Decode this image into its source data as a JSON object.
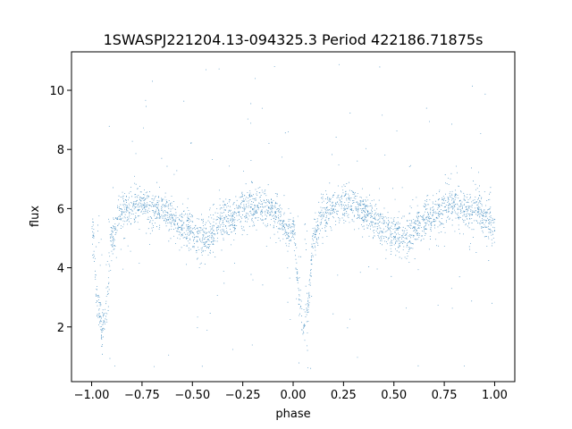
{
  "chart_data": {
    "type": "scatter",
    "title": "1SWASPJ221204.13-094325.3 Period 422186.71875s",
    "xlabel": "phase",
    "ylabel": "flux",
    "xlim": [
      -1.1,
      1.1
    ],
    "ylim": [
      0.15,
      11.3
    ],
    "xticks": [
      -1.0,
      -0.75,
      -0.5,
      -0.25,
      0.0,
      0.25,
      0.5,
      0.75,
      1.0
    ],
    "xtick_labels": [
      "−1.00",
      "−0.75",
      "−0.50",
      "−0.25",
      "0.00",
      "0.25",
      "0.50",
      "0.75",
      "1.00"
    ],
    "yticks": [
      2,
      4,
      6,
      8,
      10
    ],
    "ytick_labels": [
      "2",
      "4",
      "6",
      "8",
      "10"
    ],
    "grid": false,
    "series": [
      {
        "color": "#1f77b4",
        "marker": "point",
        "points_approx": 24000,
        "curve": {
          "x": [
            -1.0,
            -0.97,
            -0.95,
            -0.93,
            -0.9,
            -0.85,
            -0.75,
            -0.65,
            -0.55,
            -0.45,
            -0.35,
            -0.2,
            -0.1,
            -0.03,
            0.0,
            0.03,
            0.05,
            0.07,
            0.1,
            0.15,
            0.25,
            0.35,
            0.45,
            0.55,
            0.65,
            0.8,
            0.9,
            0.97,
            1.0
          ],
          "y": [
            5.3,
            2.8,
            1.9,
            2.6,
            5.1,
            5.9,
            6.2,
            5.9,
            5.4,
            5.0,
            5.6,
            6.1,
            5.9,
            5.3,
            5.3,
            2.8,
            1.9,
            2.6,
            5.1,
            5.9,
            6.2,
            5.9,
            5.4,
            5.0,
            5.6,
            6.1,
            5.9,
            5.6,
            5.3
          ]
        },
        "scatter_sigma": 0.3,
        "outlier_range": [
          0.6,
          10.9
        ]
      }
    ]
  }
}
